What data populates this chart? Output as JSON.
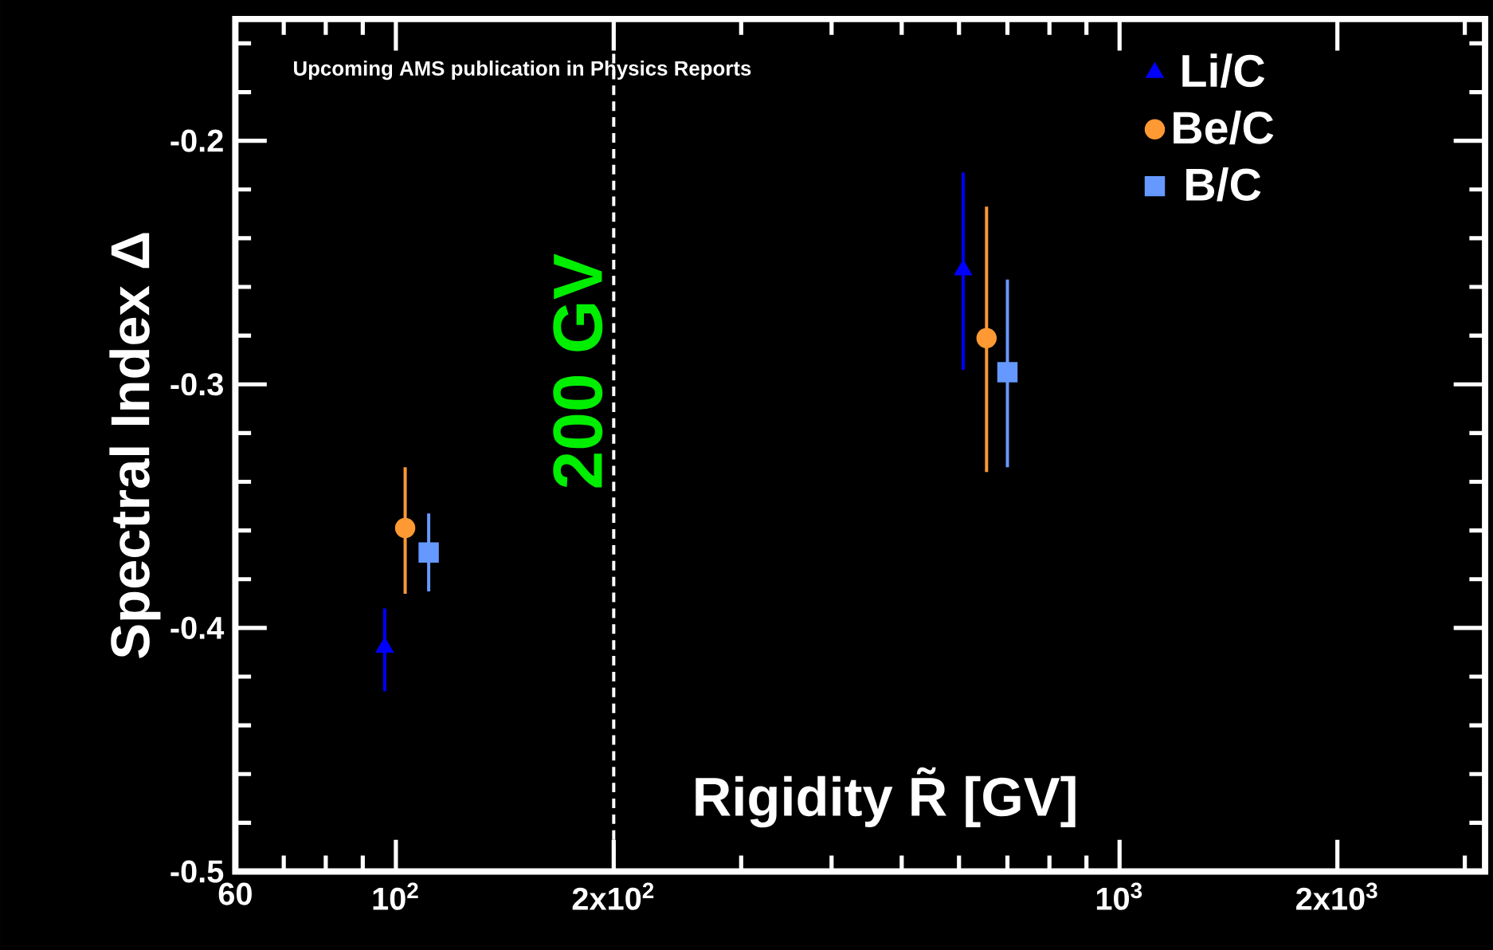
{
  "chart_data": {
    "type": "scatter",
    "xlabel": "Rigidity R̃ [GV]",
    "ylabel": "Spectral Index Δ",
    "annotations": [
      "Upcoming AMS publication in Physics Reports"
    ],
    "log": "x",
    "xlim": [
      60,
      3200
    ],
    "ylim": [
      -0.5,
      -0.15
    ],
    "xticks": [
      60,
      {
        "value": 100,
        "label": "10$^{2}$"
      },
      {
        "value": 200,
        "label": "2x10$^{2}$"
      },
      {
        "value": 1000,
        "label": "10$^{3}$"
      },
      {
        "value": 2000,
        "label": "2x10$^{3}$"
      }
    ],
    "yticks": [
      -0.2,
      -0.3,
      -0.4,
      -0.5
    ],
    "legend": "top right",
    "series": [
      {
        "name": "Li/C",
        "color": "#0000ff",
        "marker": "triangle",
        "x": [
          96.5,
          608
        ],
        "values": [
          -0.408,
          -0.253
        ],
        "errors": [
          [
            -0.426,
            -0.392
          ],
          [
            -0.294,
            -0.213
          ]
        ]
      },
      {
        "name": "Be/C",
        "color": "#ff9933",
        "marker": "circle",
        "x": [
          103,
          655
        ],
        "values": [
          -0.359,
          -0.281
        ],
        "errors": [
          [
            -0.386,
            -0.334
          ],
          [
            -0.336,
            -0.227
          ]
        ]
      },
      {
        "name": "B/C",
        "color": "#6699ff",
        "marker": "square",
        "x": [
          111,
          700
        ],
        "values": [
          -0.369,
          -0.295
        ],
        "errors": [
          [
            -0.385,
            -0.353
          ],
          [
            -0.334,
            -0.257
          ]
        ]
      }
    ],
    "ref_lines": [
      {
        "axis": "x",
        "value": 200,
        "label": "200 GV",
        "color": "#ffffff",
        "line_style": "dashed"
      }
    ]
  }
}
